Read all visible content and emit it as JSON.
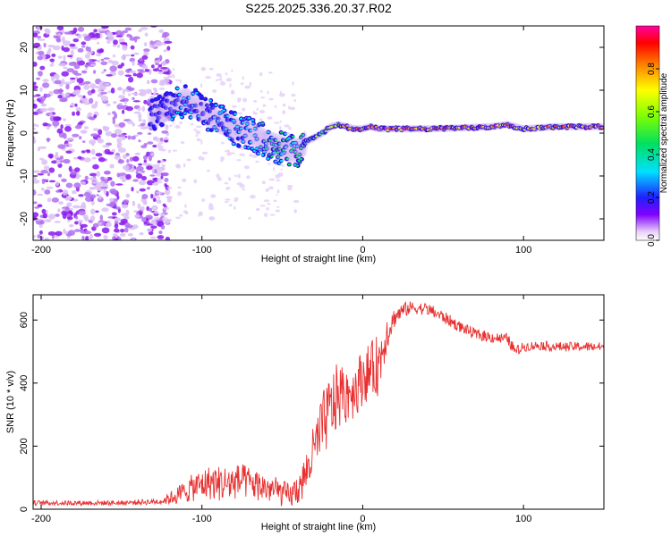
{
  "title": "S225.2025.336.20.37.R02",
  "colors": {
    "snr_line": "#e83030",
    "axis": "#000000"
  },
  "chart_data": [
    {
      "type": "heatmap",
      "name": "spectrogram",
      "xlabel": "Height of straight line (km)",
      "ylabel": "Frequency (Hz)",
      "xlim": [
        -205,
        150
      ],
      "ylim": [
        -25,
        25
      ],
      "xticks": [
        -200,
        -100,
        0,
        100
      ],
      "xtick_labels": [
        "-200",
        "-100",
        "0",
        "100"
      ],
      "yticks": [
        20,
        10,
        0,
        -10,
        -20
      ],
      "ytick_labels": [
        "20",
        "10",
        "0",
        "-10",
        "-20"
      ],
      "colorbar": {
        "label": "Normalized spectral amplitude",
        "range": [
          0,
          1
        ],
        "ticks": [
          0.0,
          0.2,
          0.4,
          0.6,
          0.8
        ],
        "tick_labels": [
          "0.0",
          "0.2",
          "0.4",
          "0.6",
          "0.8"
        ]
      },
      "ridge": {
        "x": [
          -130,
          -120,
          -110,
          -100,
          -90,
          -80,
          -70,
          -60,
          -50,
          -45,
          -40,
          -35,
          -30,
          -25,
          -20,
          -15,
          -10,
          -5,
          0,
          5,
          10,
          20,
          40,
          60,
          80,
          90,
          100,
          120,
          150
        ],
        "freq": [
          4,
          6,
          8,
          5,
          3,
          1,
          0,
          -2,
          -3.5,
          -4,
          -4,
          -2,
          -1,
          0,
          1.5,
          2,
          1.5,
          1,
          1,
          1.5,
          1,
          1,
          1,
          1.2,
          1.5,
          2,
          1,
          1.5,
          1.5
        ],
        "amplitude": [
          0.25,
          0.3,
          0.35,
          0.3,
          0.35,
          0.35,
          0.4,
          0.45,
          0.45,
          0.45,
          0.5,
          0.55,
          0.6,
          0.65,
          0.75,
          0.8,
          0.85,
          0.9,
          0.9,
          0.95,
          0.95,
          0.95,
          0.9,
          0.9,
          0.85,
          0.95,
          0.85,
          0.9,
          0.9
        ]
      }
    },
    {
      "type": "line",
      "name": "snr",
      "xlabel": "Height of straight line (km)",
      "ylabel": "SNR (10 * v/v)",
      "xlim": [
        -205,
        150
      ],
      "ylim": [
        0,
        680
      ],
      "xticks": [
        -200,
        -100,
        0,
        100
      ],
      "xtick_labels": [
        "-200",
        "-100",
        "0",
        "100"
      ],
      "yticks": [
        0,
        200,
        400,
        600
      ],
      "ytick_labels": [
        "0",
        "200",
        "400",
        "600"
      ],
      "envelope": {
        "x": [
          -205,
          -180,
          -150,
          -125,
          -115,
          -105,
          -95,
          -85,
          -75,
          -65,
          -55,
          -45,
          -38,
          -32,
          -25,
          -20,
          -15,
          -10,
          -5,
          0,
          5,
          10,
          15,
          20,
          25,
          30,
          40,
          50,
          60,
          70,
          80,
          90,
          95,
          100,
          110,
          120,
          130,
          150
        ],
        "mean": [
          20,
          20,
          20,
          25,
          45,
          70,
          85,
          80,
          90,
          75,
          60,
          40,
          80,
          160,
          260,
          320,
          360,
          370,
          380,
          420,
          440,
          460,
          560,
          610,
          630,
          640,
          635,
          610,
          580,
          555,
          545,
          540,
          500,
          515,
          520,
          515,
          515,
          515
        ],
        "noise": [
          8,
          8,
          8,
          10,
          30,
          45,
          55,
          60,
          55,
          50,
          45,
          40,
          60,
          80,
          110,
          110,
          110,
          100,
          90,
          90,
          90,
          100,
          60,
          30,
          25,
          20,
          20,
          20,
          18,
          18,
          18,
          18,
          18,
          15,
          15,
          15,
          15,
          15
        ]
      }
    }
  ]
}
